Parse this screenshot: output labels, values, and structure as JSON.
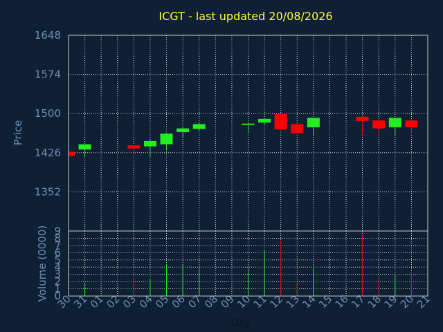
{
  "chart_data": {
    "type": "candlestick",
    "title": "ICGT - last updated 20/08/2026",
    "price_axis": {
      "label": "Price",
      "ylim": [
        1278,
        1648
      ],
      "ticks": [
        1648,
        1574,
        1500,
        1426,
        1352
      ]
    },
    "volume_axis": {
      "label": "Volume (0000)",
      "ylim": [
        0,
        9
      ],
      "ticks": [
        0,
        1,
        2,
        3,
        4,
        5,
        6,
        7,
        8,
        9
      ]
    },
    "x_axis": {
      "label": "Day",
      "categories": [
        "30",
        "31",
        "01",
        "02",
        "03",
        "04",
        "05",
        "06",
        "07",
        "08",
        "09",
        "10",
        "11",
        "12",
        "13",
        "14",
        "15",
        "16",
        "17",
        "18",
        "19",
        "20",
        "21"
      ]
    },
    "grid": true,
    "colors": {
      "up": "#22ee22",
      "down": "#ff0000",
      "background": "#0f2035"
    },
    "candles": [
      {
        "day": "30",
        "open": 1428,
        "high": 1428,
        "low": 1420,
        "close": 1420,
        "volume": 0
      },
      {
        "day": "31",
        "open": 1432,
        "high": 1442,
        "low": 1418,
        "close": 1442,
        "volume": 1.8
      },
      {
        "day": "03",
        "open": 1440,
        "high": 1440,
        "low": 1424,
        "close": 1434,
        "volume": 1.9
      },
      {
        "day": "04",
        "open": 1438,
        "high": 1450,
        "low": 1418,
        "close": 1448,
        "volume": 2.4
      },
      {
        "day": "05",
        "open": 1442,
        "high": 1464,
        "low": 1432,
        "close": 1462,
        "volume": 4.4
      },
      {
        "day": "06",
        "open": 1465,
        "high": 1474,
        "low": 1456,
        "close": 1472,
        "volume": 4.3
      },
      {
        "day": "07",
        "open": 1471,
        "high": 1482,
        "low": 1468,
        "close": 1480,
        "volume": 3.8
      },
      {
        "day": "10",
        "open": 1480,
        "high": 1482,
        "low": 1462,
        "close": 1481,
        "volume": 3.7
      },
      {
        "day": "11",
        "open": 1483,
        "high": 1490,
        "low": 1478,
        "close": 1490,
        "volume": 6.3
      },
      {
        "day": "12",
        "open": 1499,
        "high": 1499,
        "low": 1470,
        "close": 1470,
        "volume": 7.7
      },
      {
        "day": "13",
        "open": 1480,
        "high": 1482,
        "low": 1462,
        "close": 1463,
        "volume": 1.7
      },
      {
        "day": "14",
        "open": 1474,
        "high": 1492,
        "low": 1458,
        "close": 1492,
        "volume": 3.9
      },
      {
        "day": "17",
        "open": 1494,
        "high": 1498,
        "low": 1460,
        "close": 1486,
        "volume": 8.5
      },
      {
        "day": "18",
        "open": 1487,
        "high": 1488,
        "low": 1460,
        "close": 1472,
        "volume": 2.7
      },
      {
        "day": "19",
        "open": 1474,
        "high": 1492,
        "low": 1458,
        "close": 1492,
        "volume": 2.9
      },
      {
        "day": "20",
        "open": 1487,
        "high": 1488,
        "low": 1462,
        "close": 1474,
        "volume": 3.3
      }
    ]
  }
}
